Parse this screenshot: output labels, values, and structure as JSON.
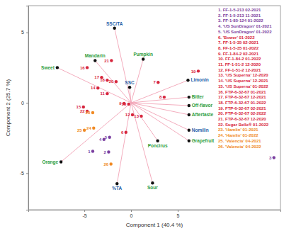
{
  "chart_data": {
    "type": "biplot",
    "x_label": "Component 1 (40.4 %)",
    "y_label": "Component 2 (25.7 %)",
    "xlim": [
      -11,
      16
    ],
    "ylim": [
      -7.6,
      6.9
    ],
    "xticks": [
      -5,
      0,
      5
    ],
    "yticks": [
      -5,
      0,
      5
    ],
    "grid": false,
    "samples": {
      "labels": [
        "1",
        "2",
        "3",
        "4",
        "5",
        "6",
        "7",
        "8",
        "9",
        "10",
        "11",
        "12",
        "13",
        "14",
        "15",
        "16",
        "17",
        "18",
        "19",
        "20",
        "21",
        "22",
        "23",
        "24",
        "25",
        "26"
      ],
      "x": [
        -4.1,
        -2.4,
        15.3,
        -2.9,
        -2.3,
        -0.55,
        2.9,
        3.55,
        -0.75,
        -0.25,
        -2.55,
        0.15,
        1.1,
        -3.55,
        -5.1,
        -4.7,
        -3.15,
        -2.55,
        7.2,
        -1.6,
        -2.1,
        -4.7,
        -4.1,
        -4.0,
        -5.0,
        -2.15
      ],
      "y": [
        -3.45,
        -3.5,
        -3.9,
        -2.6,
        -2.45,
        -2.1,
        1.45,
        0.4,
        -0.05,
        -0.1,
        0.65,
        -0.85,
        -0.95,
        1.05,
        -0.3,
        2.5,
        1.8,
        1.6,
        2.25,
        1.5,
        3.0,
        -0.6,
        -0.7,
        -1.8,
        -1.95,
        -4.35
      ],
      "colors": [
        "#7b3fa0",
        "#7b3fa0",
        "#7b3fa0",
        "#7b3fa0",
        "#7b3fa0",
        "#d7263d",
        "#d7263d",
        "#d7263d",
        "#d7263d",
        "#d7263d",
        "#d7263d",
        "#d7263d",
        "#d7263d",
        "#d7263d",
        "#d7263d",
        "#d7263d",
        "#d7263d",
        "#d7263d",
        "#d7263d",
        "#d7263d",
        "#d7263d",
        "#d7263d",
        "#f08a24",
        "#f08a24",
        "#f08a24",
        "#f08a24"
      ]
    },
    "loadings": {
      "labels": [
        "SSC/TA",
        "Mandarin",
        "Pumpkin",
        "Sweet",
        "Limonin",
        "Bitter",
        "Off-flavor",
        "Aftertaste",
        "SSC",
        "Nomilin",
        "Poncirus",
        "Grapefruit",
        "Orange",
        "Sour",
        "%TA"
      ],
      "x": [
        -1.77,
        -3.85,
        1.3,
        -7.9,
        6.1,
        6.2,
        6.2,
        6.2,
        -0.15,
        6.2,
        2.85,
        6.2,
        -7.5,
        2.3,
        -1.5
      ],
      "y": [
        5.3,
        3.0,
        3.1,
        2.5,
        1.6,
        0.4,
        -0.2,
        -0.85,
        1.1,
        -1.95,
        -2.7,
        -2.7,
        -4.2,
        -5.7,
        -5.75
      ],
      "colors": [
        "#1f5fa8",
        "#2e9e3e",
        "#2e9e3e",
        "#2e9e3e",
        "#1f5fa8",
        "#2e9e3e",
        "#2e9e3e",
        "#2e9e3e",
        "#1f5fa8",
        "#1f5fa8",
        "#2e9e3e",
        "#2e9e3e",
        "#2e9e3e",
        "#2e9e3e",
        "#1f5fa8"
      ]
    },
    "legend_entries": [
      "1. FF-1-5-213 02-2021",
      "2. FF-1-5-213 11-2021",
      "3. FF-1-85-124 01-2022",
      "4. 'US SunDragon' 01-2021",
      "5. 'US SunDragon' 01-2022",
      "6. 'Bower' 01-2022",
      "7. FF-1-5-35 02-2021",
      "8. FF-1-5-35 01-2022",
      "9. FF-1-84-2 02-2021",
      "10. FF-1-84-2 01-2022",
      "11. FF-1-51-2 12-2020",
      "12. FF-1-51-2 12-2021",
      "13. 'US Superna' 12-2020",
      "14. 'US Superna' 12-2021",
      "15. 'US Superna' 01-2022",
      "16. FTP-6-32-67 01-2021",
      "17. FTP-6-32-67 12-2021",
      "18. FTP-6-32-67 01-2022",
      "19. FTP-6-32-67 02-2021",
      "20. FTP-6-32-67 02-2022",
      "21. FTP-6-32-67 12-2020",
      "22. Sugar Belle® 01-2022",
      "23. 'Hamlin' 01-2021",
      "24. 'Hamlin' 01-2022",
      "25. 'Valencia' 04-2021",
      "26. 'Valencia' 04-2022"
    ]
  }
}
